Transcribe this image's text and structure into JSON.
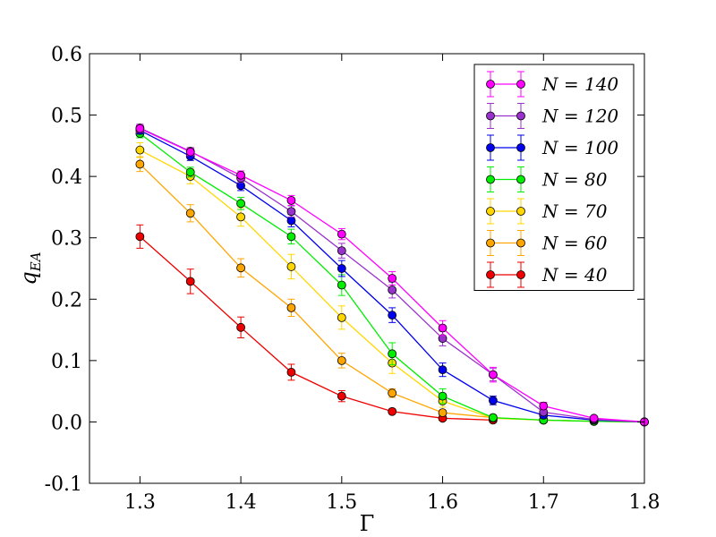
{
  "chart_data": {
    "type": "line",
    "xlabel": "Γ",
    "ylabel_main": "q",
    "ylabel_sub": "EA",
    "xlim": [
      1.25,
      1.8
    ],
    "ylim": [
      -0.1,
      0.6
    ],
    "x_ticks": [
      1.3,
      1.4,
      1.5,
      1.6,
      1.7,
      1.8
    ],
    "x_tick_labels": [
      "1.3",
      "1.4",
      "1.5",
      "1.6",
      "1.7",
      "1.8"
    ],
    "y_ticks": [
      -0.1,
      0.0,
      0.1,
      0.2,
      0.3,
      0.4,
      0.5,
      0.6
    ],
    "y_tick_labels": [
      "-0.1",
      "0.0",
      "0.1",
      "0.2",
      "0.3",
      "0.4",
      "0.5",
      "0.6"
    ],
    "grid": false,
    "legend_position": "top-right",
    "x": [
      1.3,
      1.35,
      1.4,
      1.45,
      1.5,
      1.55,
      1.6,
      1.65,
      1.7,
      1.75,
      1.8
    ],
    "series": [
      {
        "name": "N = 140",
        "n_value": "140",
        "color": "#ff00ff",
        "values": [
          0.478,
          0.44,
          0.402,
          0.361,
          0.306,
          0.234,
          0.153,
          0.077,
          0.026,
          0.006,
          0.0
        ],
        "errors": [
          0.006,
          0.006,
          0.007,
          0.008,
          0.009,
          0.011,
          0.012,
          0.012,
          0.006,
          0.003,
          0.001
        ]
      },
      {
        "name": "N = 120",
        "n_value": "120",
        "color": "#9932cc",
        "values": [
          0.479,
          0.441,
          0.397,
          0.343,
          0.279,
          0.215,
          0.136,
          0.077,
          0.016,
          0.004,
          0.0
        ],
        "errors": [
          0.006,
          0.006,
          0.007,
          0.009,
          0.012,
          0.013,
          0.012,
          0.01,
          0.005,
          0.002,
          0.001
        ]
      },
      {
        "name": "N = 100",
        "n_value": "100",
        "color": "#0000ee",
        "values": [
          0.475,
          0.433,
          0.385,
          0.328,
          0.25,
          0.174,
          0.085,
          0.035,
          0.011,
          0.003,
          0.0
        ],
        "errors": [
          0.006,
          0.007,
          0.008,
          0.01,
          0.013,
          0.012,
          0.011,
          0.007,
          0.004,
          0.002,
          0.001
        ]
      },
      {
        "name": "N = 80",
        "n_value": "80",
        "color": "#00ee00",
        "values": [
          0.47,
          0.407,
          0.356,
          0.302,
          0.223,
          0.111,
          0.042,
          0.007,
          0.003,
          0.001,
          0.0
        ],
        "errors": [
          0.007,
          0.008,
          0.01,
          0.012,
          0.017,
          0.018,
          0.012,
          0.004,
          0.002,
          0.001,
          0.001
        ]
      },
      {
        "name": "N = 70",
        "n_value": "70",
        "color": "#ffd700",
        "values": [
          0.443,
          0.4,
          0.334,
          0.253,
          0.17,
          0.096,
          0.034,
          0.006,
          0.003,
          0.001,
          0.0
        ],
        "errors": [
          0.012,
          0.012,
          0.015,
          0.02,
          0.019,
          0.017,
          0.01,
          0.003,
          0.002,
          0.001,
          0.001
        ]
      },
      {
        "name": "N = 60",
        "n_value": "60",
        "color": "#ffa500",
        "values": [
          0.42,
          0.34,
          0.251,
          0.186,
          0.1,
          0.047,
          0.015,
          0.007,
          0.003,
          0.001,
          0.0
        ],
        "errors": [
          0.012,
          0.014,
          0.015,
          0.014,
          0.012,
          0.007,
          0.004,
          0.003,
          0.002,
          0.001,
          0.001
        ]
      },
      {
        "name": "N = 40",
        "n_value": "40",
        "color": "#ee0000",
        "values": [
          0.302,
          0.229,
          0.154,
          0.081,
          0.042,
          0.017,
          0.006,
          0.003,
          null,
          null,
          null
        ],
        "errors": [
          0.019,
          0.02,
          0.017,
          0.013,
          0.009,
          0.004,
          0.002,
          0.002,
          null,
          null,
          null
        ]
      }
    ]
  }
}
